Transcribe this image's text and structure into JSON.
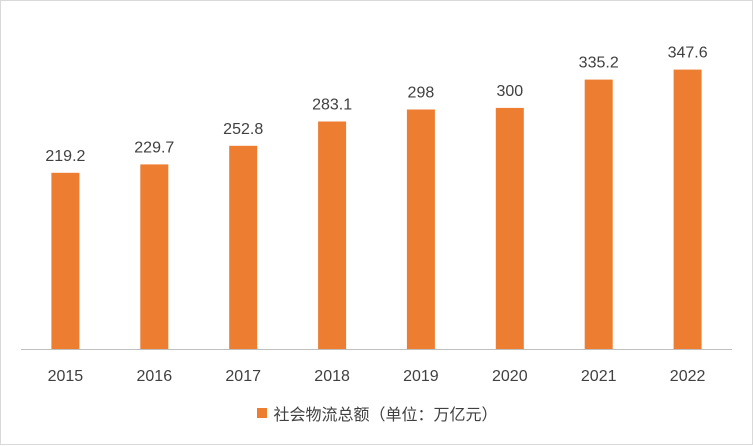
{
  "colors": {
    "bar": "#ED7D31",
    "axis": "#bfbfbf",
    "text": "#404040"
  },
  "chart_data": {
    "type": "bar",
    "categories": [
      "2015",
      "2016",
      "2017",
      "2018",
      "2019",
      "2020",
      "2021",
      "2022"
    ],
    "series": [
      {
        "name": "社会物流总额（单位：万亿元）",
        "values": [
          219.2,
          229.7,
          252.8,
          283.1,
          298,
          300,
          335.2,
          347.6
        ]
      }
    ],
    "value_labels": [
      "219.2",
      "229.7",
      "252.8",
      "283.1",
      "298",
      "300",
      "335.2",
      "347.6"
    ],
    "title": "",
    "xlabel": "",
    "ylabel": "",
    "ylim": [
      0,
      400
    ],
    "grid": false,
    "legend": "bottom"
  }
}
